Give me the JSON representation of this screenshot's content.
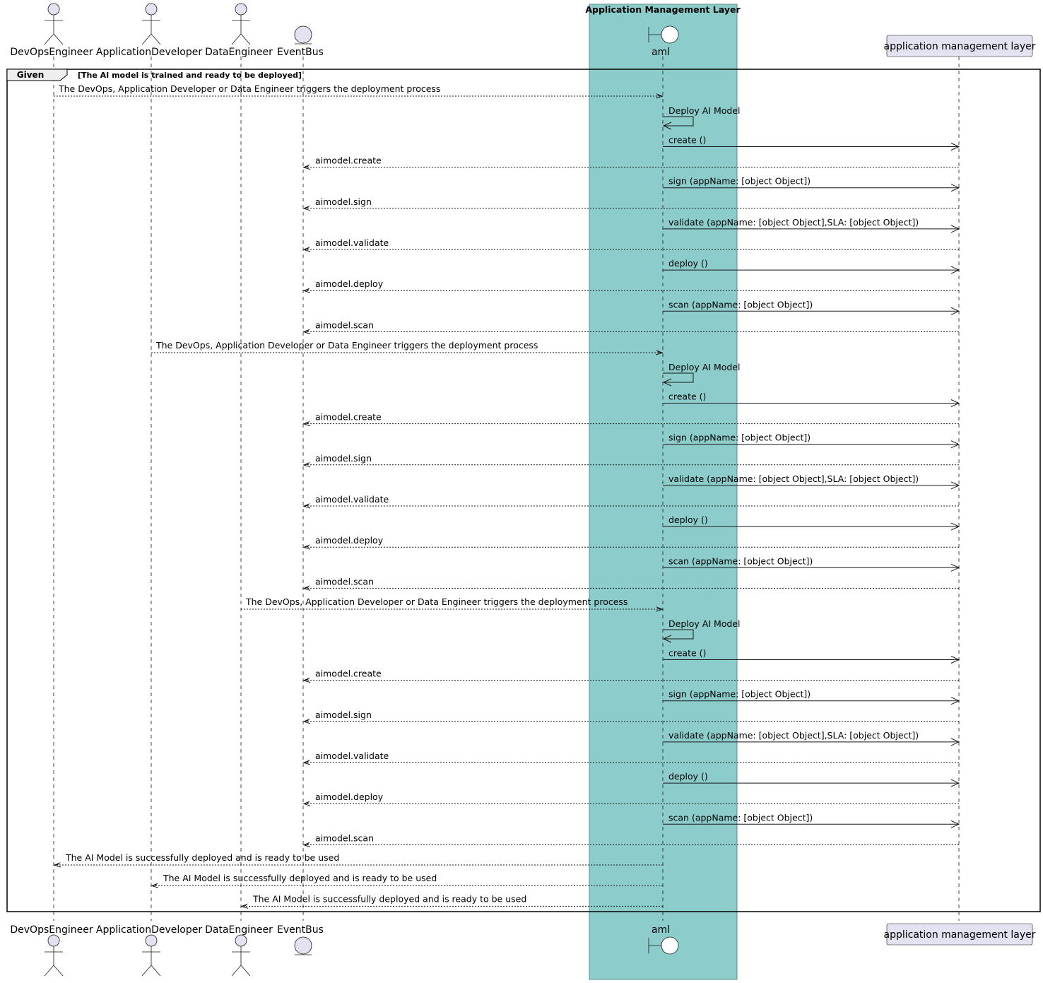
{
  "colors": {
    "box_fill": "#8CCDCC",
    "box_stroke": "#5a8e8d",
    "participant_fill": "#E2E2F0",
    "participant_stroke": "#181818",
    "line": "#181818"
  },
  "box": {
    "title": "Application Management Layer"
  },
  "participants": [
    {
      "id": "devops",
      "label": "DevOpsEngineer",
      "kind": "actor"
    },
    {
      "id": "appdev",
      "label": "ApplicationDeveloper",
      "kind": "actor"
    },
    {
      "id": "dataeng",
      "label": "DataEngineer",
      "kind": "actor"
    },
    {
      "id": "eventbus",
      "label": "EventBus",
      "kind": "entity"
    },
    {
      "id": "aml",
      "label": "aml",
      "kind": "boundary"
    },
    {
      "id": "aml_layer",
      "label": "application management layer",
      "kind": "participant"
    }
  ],
  "group": {
    "label": "Given",
    "condition": "[The AI model is trained and ready to be deployed]"
  },
  "sequences": [
    {
      "trigger": {
        "from": "devops",
        "to": "aml",
        "text": "The DevOps, Application Developer or Data Engineer triggers the deployment process"
      },
      "self": {
        "participant": "aml",
        "text": "Deploy AI Model"
      },
      "steps": [
        {
          "call": "create ()",
          "event": "aimodel.create"
        },
        {
          "call": "sign (appName: [object Object])",
          "event": "aimodel.sign"
        },
        {
          "call": "validate (appName: [object Object],SLA: [object Object])",
          "event": "aimodel.validate"
        },
        {
          "call": "deploy ()",
          "event": "aimodel.deploy"
        },
        {
          "call": "scan (appName: [object Object])",
          "event": "aimodel.scan"
        }
      ]
    },
    {
      "trigger": {
        "from": "appdev",
        "to": "aml",
        "text": "The DevOps, Application Developer or Data Engineer triggers the deployment process"
      },
      "self": {
        "participant": "aml",
        "text": "Deploy AI Model"
      },
      "steps": [
        {
          "call": "create ()",
          "event": "aimodel.create"
        },
        {
          "call": "sign (appName: [object Object])",
          "event": "aimodel.sign"
        },
        {
          "call": "validate (appName: [object Object],SLA: [object Object])",
          "event": "aimodel.validate"
        },
        {
          "call": "deploy ()",
          "event": "aimodel.deploy"
        },
        {
          "call": "scan (appName: [object Object])",
          "event": "aimodel.scan"
        }
      ]
    },
    {
      "trigger": {
        "from": "dataeng",
        "to": "aml",
        "text": "The DevOps, Application Developer or Data Engineer triggers the deployment process"
      },
      "self": {
        "participant": "aml",
        "text": "Deploy AI Model"
      },
      "steps": [
        {
          "call": "create ()",
          "event": "aimodel.create"
        },
        {
          "call": "sign (appName: [object Object])",
          "event": "aimodel.sign"
        },
        {
          "call": "validate (appName: [object Object],SLA: [object Object])",
          "event": "aimodel.validate"
        },
        {
          "call": "deploy ()",
          "event": "aimodel.deploy"
        },
        {
          "call": "scan (appName: [object Object])",
          "event": "aimodel.scan"
        }
      ]
    }
  ],
  "responses": [
    {
      "from": "aml",
      "to": "devops",
      "text": "The AI Model is successfully deployed and is ready to be used"
    },
    {
      "from": "aml",
      "to": "appdev",
      "text": "The AI Model is successfully deployed and is ready to be used"
    },
    {
      "from": "aml",
      "to": "dataeng",
      "text": "The AI Model is successfully deployed and is ready to be used"
    }
  ]
}
